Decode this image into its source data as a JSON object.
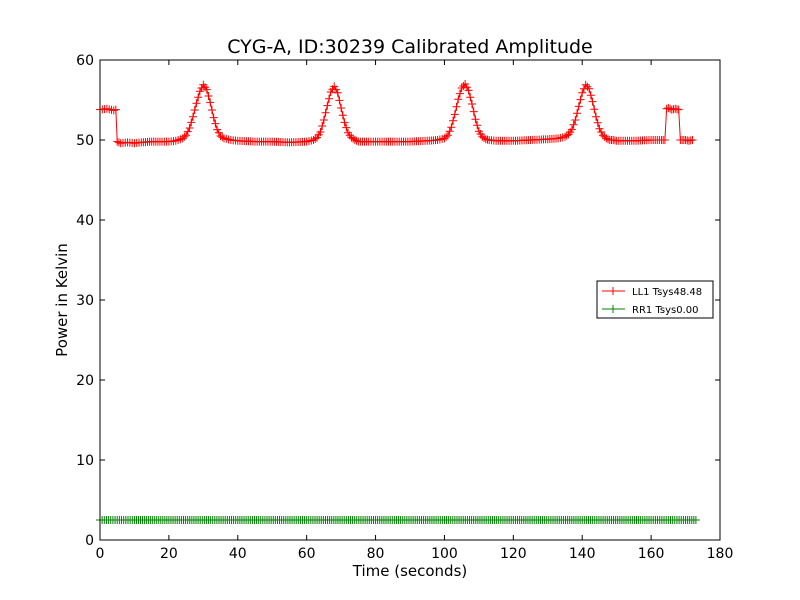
{
  "chart_data": {
    "type": "line",
    "title": "CYG-A, ID:30239 Calibrated Amplitude",
    "xlabel": "Time (seconds)",
    "ylabel": "Power in Kelvin",
    "xlim": [
      0,
      180
    ],
    "ylim": [
      0,
      60
    ],
    "xticks": [
      "0",
      "20",
      "40",
      "60",
      "80",
      "100",
      "120",
      "140",
      "160",
      "180"
    ],
    "yticks": [
      "0",
      "10",
      "20",
      "30",
      "40",
      "50",
      "60"
    ],
    "grid": false,
    "legend_position": "center-right",
    "marker": "+",
    "series": [
      {
        "name": "LL1 Tsys48.48",
        "color": "#ff0000",
        "x": [
          0,
          2,
          4,
          4.6,
          5,
          6,
          8,
          10,
          12,
          15,
          18,
          20,
          22,
          24,
          25,
          26,
          27,
          28,
          29,
          30,
          31,
          32,
          33,
          34,
          35,
          36,
          38,
          40,
          45,
          50,
          55,
          60,
          62,
          63,
          64,
          65,
          66,
          67,
          68,
          69,
          70,
          71,
          72,
          73,
          74,
          75,
          78,
          80,
          85,
          90,
          95,
          98,
          100,
          101,
          102,
          103,
          104,
          105,
          106,
          107,
          108,
          109,
          110,
          111,
          112,
          113,
          115,
          120,
          125,
          130,
          133,
          135,
          136,
          137,
          138,
          139,
          140,
          141,
          142,
          143,
          144,
          145,
          146,
          147,
          148,
          149,
          150,
          155,
          160,
          163,
          164,
          164.5,
          165,
          166,
          167,
          168,
          168.5,
          169,
          170,
          171,
          172
        ],
        "y": [
          53.8,
          53.9,
          53.7,
          53.8,
          49.8,
          49.6,
          49.7,
          49.6,
          49.7,
          49.8,
          49.8,
          49.8,
          49.9,
          50.2,
          50.6,
          51.5,
          52.9,
          54.6,
          56.1,
          56.9,
          56.3,
          54.7,
          52.8,
          51.3,
          50.5,
          50.2,
          50.0,
          49.9,
          49.8,
          49.8,
          49.7,
          49.8,
          50.0,
          50.3,
          51.0,
          52.5,
          54.3,
          56.0,
          56.7,
          55.9,
          54.0,
          52.2,
          50.9,
          50.3,
          50.0,
          49.8,
          49.8,
          49.8,
          49.8,
          49.8,
          49.9,
          50.0,
          50.2,
          50.6,
          51.6,
          53.2,
          55.1,
          56.5,
          57.0,
          56.2,
          54.5,
          52.6,
          51.1,
          50.4,
          50.1,
          50.0,
          49.9,
          49.9,
          50.0,
          50.1,
          50.2,
          50.4,
          50.7,
          51.3,
          52.5,
          54.2,
          55.9,
          56.9,
          56.4,
          54.8,
          52.9,
          51.4,
          50.6,
          50.2,
          50.0,
          50.0,
          49.9,
          49.9,
          50.0,
          50.0,
          50.0,
          53.9,
          54.0,
          53.8,
          53.9,
          53.8,
          50.0,
          50.0,
          50.0,
          49.9,
          50.0
        ]
      },
      {
        "name": "RR1 Tsys0.00",
        "color": "#008000",
        "x": [
          0,
          5,
          10,
          20,
          40,
          60,
          80,
          100,
          120,
          140,
          160,
          165,
          170,
          173
        ],
        "y": [
          2.5,
          2.5,
          2.5,
          2.5,
          2.5,
          2.5,
          2.5,
          2.5,
          2.5,
          2.5,
          2.5,
          2.5,
          2.5,
          2.5
        ]
      }
    ]
  }
}
